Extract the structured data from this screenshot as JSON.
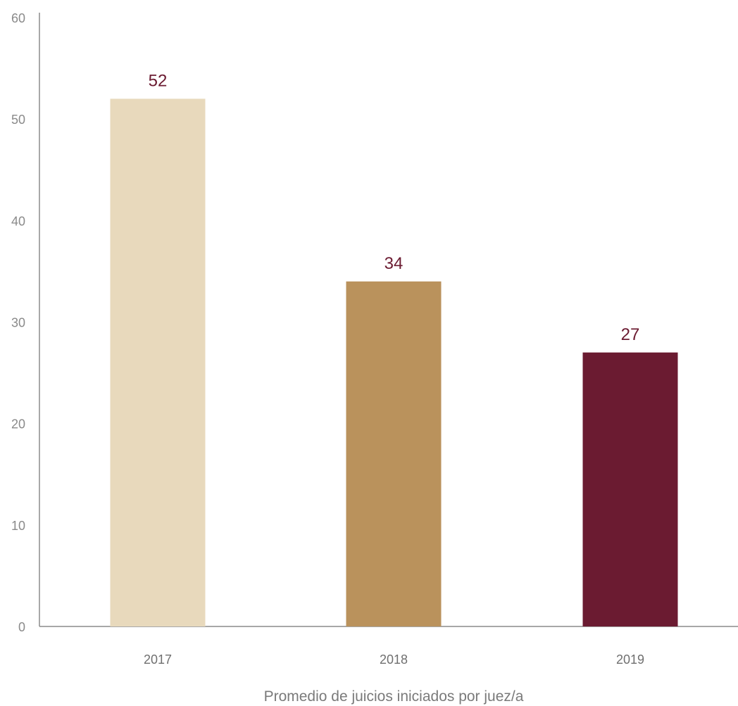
{
  "chart_data": {
    "type": "bar",
    "categories": [
      "2017",
      "2018",
      "2019"
    ],
    "values": [
      52,
      34,
      27
    ],
    "data_labels": [
      "52",
      "34",
      "27"
    ],
    "bar_colors": [
      "#e8d9bc",
      "#ba925c",
      "#6b1b31"
    ],
    "data_label_color": "#6b1b31",
    "title": "",
    "xlabel": "Promedio de juicios iniciados por juez/a",
    "ylabel": "",
    "ylim": [
      0,
      60
    ],
    "yticks": [
      0,
      10,
      20,
      30,
      40,
      50,
      60
    ],
    "grid": false,
    "legend": "none"
  }
}
